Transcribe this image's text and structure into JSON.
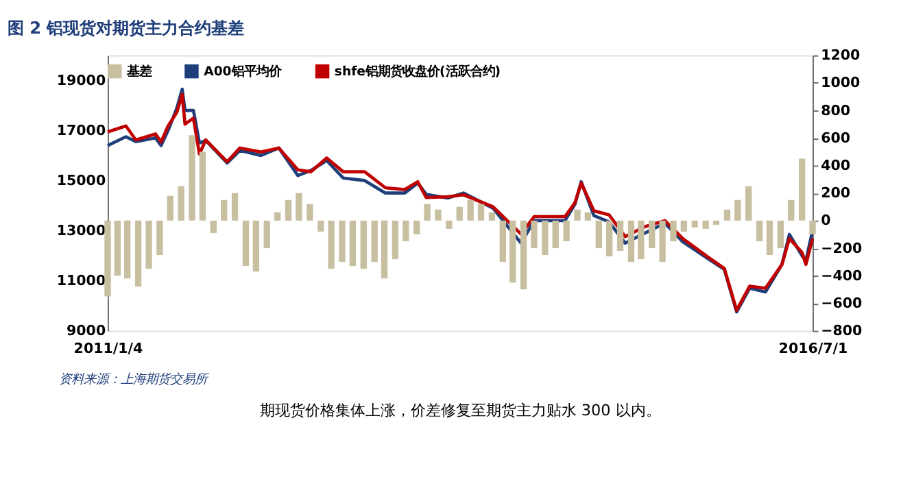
{
  "chart_data": {
    "type": "line",
    "title": "图 2    铝现货对期货主力合约基差",
    "annotations": [
      "资料来源：上海期货交易所",
      "期现货价格集体上涨，价差修复至期货主力贴水 300 以内。"
    ],
    "x": [
      "2011-01-04",
      "2011-02-25",
      "2011-03-25",
      "2011-05-20",
      "2011-06-05",
      "2011-06-25",
      "2011-07-20",
      "2011-08-04",
      "2011-08-12",
      "2011-09-05",
      "2011-09-22",
      "2011-10-10",
      "2011-12-10",
      "2012-01-15",
      "2012-03-15",
      "2012-05-05",
      "2012-06-28",
      "2012-08-04",
      "2012-09-18",
      "2012-11-04",
      "2013-01-04",
      "2013-03-04",
      "2013-04-28",
      "2013-06-04",
      "2013-06-28",
      "2013-08-28",
      "2013-10-12",
      "2014-01-04",
      "2014-03-25",
      "2014-05-01",
      "2014-07-28",
      "2014-08-25",
      "2014-09-12",
      "2014-10-18",
      "2014-11-30",
      "2015-01-15",
      "2015-03-12",
      "2015-05-08",
      "2015-06-28",
      "2015-09-05",
      "2015-10-24",
      "2015-11-28",
      "2016-01-04",
      "2016-02-18",
      "2016-04-05",
      "2016-04-26",
      "2016-06-01",
      "2016-06-12",
      "2016-07-01"
    ],
    "series": [
      {
        "name": "基差",
        "type": "bar",
        "axis": "y2",
        "color": "#c8bfa0",
        "x": [
          "2011-01-04",
          "2011-02-01",
          "2011-03-01",
          "2011-04-01",
          "2011-05-01",
          "2011-06-01",
          "2011-07-01",
          "2011-08-01",
          "2011-09-01",
          "2011-10-01",
          "2011-11-01",
          "2011-12-01",
          "2012-01-01",
          "2012-02-01",
          "2012-03-01",
          "2012-04-01",
          "2012-05-01",
          "2012-06-01",
          "2012-07-01",
          "2012-08-01",
          "2012-09-01",
          "2012-10-01",
          "2012-11-01",
          "2012-12-01",
          "2013-01-01",
          "2013-02-01",
          "2013-03-01",
          "2013-04-01",
          "2013-05-01",
          "2013-06-01",
          "2013-07-01",
          "2013-08-01",
          "2013-09-01",
          "2013-10-01",
          "2013-11-01",
          "2013-12-01",
          "2014-01-01",
          "2014-02-01",
          "2014-03-01",
          "2014-04-01",
          "2014-05-01",
          "2014-06-01",
          "2014-07-01",
          "2014-08-01",
          "2014-09-01",
          "2014-10-01",
          "2014-11-01",
          "2014-12-01",
          "2015-01-01",
          "2015-02-01",
          "2015-03-01",
          "2015-04-01",
          "2015-05-01",
          "2015-06-01",
          "2015-07-01",
          "2015-08-01",
          "2015-09-01",
          "2015-10-01",
          "2015-11-01",
          "2015-12-01",
          "2016-01-01",
          "2016-02-01",
          "2016-03-01",
          "2016-04-01",
          "2016-05-01",
          "2016-06-01",
          "2016-07-01"
        ],
        "values": [
          -550,
          -400,
          -420,
          -480,
          -350,
          -250,
          180,
          250,
          620,
          500,
          -90,
          150,
          200,
          -330,
          -370,
          -200,
          60,
          150,
          200,
          120,
          -80,
          -350,
          -300,
          -330,
          -350,
          -300,
          -420,
          -280,
          -150,
          -100,
          120,
          80,
          -60,
          100,
          150,
          120,
          60,
          -300,
          -450,
          -500,
          -200,
          -250,
          -200,
          -150,
          80,
          60,
          -200,
          -260,
          -220,
          -300,
          -280,
          -200,
          -300,
          -150,
          -80,
          -50,
          -60,
          -30,
          80,
          150,
          250,
          -150,
          -250,
          -200,
          150,
          450,
          -100
        ]
      },
      {
        "name": "A00铝平均价",
        "color": "#1f3f7a",
        "values": [
          16400,
          16750,
          16550,
          16700,
          16400,
          17000,
          17900,
          18650,
          17800,
          17800,
          16500,
          16600,
          15700,
          16200,
          16000,
          16300,
          15200,
          15400,
          15800,
          15100,
          15000,
          14500,
          14500,
          14900,
          14450,
          14300,
          14500,
          13900,
          12500,
          13400,
          13400,
          14050,
          14950,
          13600,
          13350,
          12500,
          12900,
          13300,
          12550,
          11900,
          11450,
          9750,
          10700,
          10550,
          11650,
          12850,
          12000,
          11800,
          13000
        ]
      },
      {
        "name": "shfe铝期货收盘价(活跃合约)",
        "color": "#c00000",
        "values": [
          16940,
          17180,
          16620,
          16860,
          16540,
          17180,
          17730,
          18440,
          17250,
          17490,
          16060,
          16620,
          15750,
          16300,
          16140,
          16300,
          15430,
          15350,
          15900,
          15350,
          15350,
          14710,
          14640,
          14950,
          14320,
          14350,
          14430,
          13950,
          12860,
          13560,
          13560,
          14110,
          14900,
          13790,
          13630,
          12760,
          13160,
          13400,
          12680,
          11970,
          11490,
          9820,
          10780,
          10700,
          11650,
          12680,
          12130,
          11650,
          12680
        ]
      }
    ],
    "xlim": [
      "2011-01-04",
      "2016-07-01"
    ],
    "xticks": [
      {
        "value": "2011-01-04",
        "label": "2011/1/4"
      },
      {
        "value": "2016-07-01",
        "label": "2016/7/1"
      }
    ],
    "ylim": [
      9000,
      20000
    ],
    "yticks": [
      9000,
      11000,
      13000,
      15000,
      17000,
      19000
    ],
    "y2lim": [
      -800,
      1200
    ],
    "y2ticks": [
      -800,
      -600,
      -400,
      -200,
      0,
      200,
      400,
      600,
      800,
      1000,
      1200
    ],
    "legend": "top",
    "grid": false
  }
}
